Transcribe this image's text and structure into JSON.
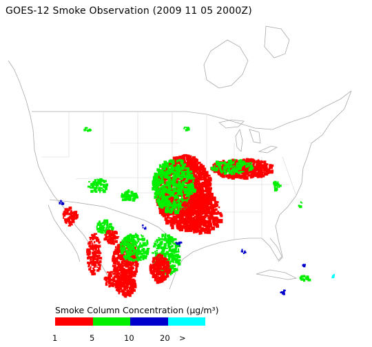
{
  "title": "GOES-12 Smoke Observation (2009 11 05  2000Z)",
  "legend": {
    "title": "Smoke Column Concentration (µg/m³)",
    "bins": [
      {
        "color": "#ff0000"
      },
      {
        "color": "#00ee00"
      },
      {
        "color": "#0000cc"
      },
      {
        "color": "#00ffff"
      }
    ],
    "ticks": [
      "1",
      "5",
      "10",
      "20",
      ">"
    ]
  },
  "colors": {
    "land_boundary": "#c8c8c8",
    "coast": "#a0a0a0"
  }
}
